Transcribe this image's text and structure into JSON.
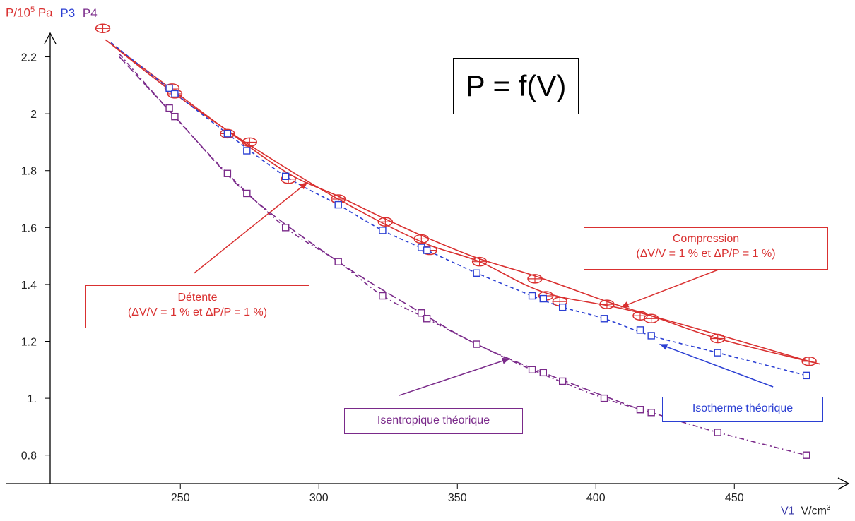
{
  "header": {
    "p_label": "P/10",
    "p_exp": "5",
    "p_unit": " Pa",
    "p3": "P3",
    "p4": "P4"
  },
  "x_axis": {
    "var": "V1",
    "unit": "V/cm",
    "unit_exp": "3"
  },
  "formula": "P = f(V)",
  "annotations": {
    "compression_title": "Compression",
    "compression_detail": "(ΔV/V = 1 % et ΔP/P = 1 %)",
    "detente_title": "Détente",
    "detente_detail": "(ΔV/V = 1 % et ΔP/P = 1 %)",
    "isotherme": "Isotherme théorique",
    "isentropique": "Isentropique théorique"
  },
  "colors": {
    "red": "#d93030",
    "blue": "#2b3fd3",
    "purple": "#7a2a8a",
    "axis": "#000000"
  },
  "chart_data": {
    "type": "scatter",
    "xlim": [
      203,
      491
    ],
    "ylim": [
      0.7,
      2.38
    ],
    "xticks": [
      250,
      300,
      350,
      400,
      450
    ],
    "yticks": [
      0.8,
      1.0,
      1.2,
      1.4,
      1.6,
      1.8,
      2.0,
      2.2
    ],
    "ytick_labels": [
      "0.8",
      "1.",
      "1.2",
      "1.4",
      "1.6",
      "1.8",
      "2",
      "2.2"
    ],
    "series": [
      {
        "name": "P",
        "color": "#d93030",
        "marker": "crossed-ellipse",
        "x": [
          222,
          247,
          248,
          267,
          275,
          289,
          307,
          324,
          337,
          340,
          358,
          378,
          382,
          387,
          404,
          416,
          420,
          444,
          477
        ],
        "y": [
          2.3,
          2.09,
          2.07,
          1.93,
          1.9,
          1.77,
          1.7,
          1.62,
          1.56,
          1.52,
          1.48,
          1.42,
          1.36,
          1.34,
          1.33,
          1.29,
          1.28,
          1.21,
          1.13
        ]
      },
      {
        "name": "P3",
        "color": "#2b3fd3",
        "marker": "square",
        "x": [
          246,
          248,
          267,
          274,
          288,
          307,
          323,
          337,
          339,
          357,
          377,
          381,
          388,
          403,
          416,
          420,
          444,
          476
        ],
        "y": [
          2.09,
          2.07,
          1.93,
          1.87,
          1.78,
          1.68,
          1.59,
          1.53,
          1.52,
          1.44,
          1.36,
          1.35,
          1.32,
          1.28,
          1.24,
          1.22,
          1.16,
          1.08
        ]
      },
      {
        "name": "P4",
        "color": "#7a2a8a",
        "marker": "square",
        "x": [
          246,
          248,
          267,
          274,
          288,
          307,
          323,
          337,
          339,
          357,
          377,
          381,
          388,
          403,
          416,
          420,
          444,
          476
        ],
        "y": [
          2.02,
          1.99,
          1.79,
          1.72,
          1.6,
          1.48,
          1.36,
          1.3,
          1.28,
          1.19,
          1.1,
          1.09,
          1.06,
          1.0,
          0.96,
          0.95,
          0.88,
          0.8
        ]
      }
    ],
    "curves": [
      {
        "color": "#d93030",
        "style": "solid",
        "x": [
          223,
          247,
          267,
          289,
          307,
          324,
          340,
          358,
          378,
          404,
          420,
          444,
          481
        ],
        "y": [
          2.26,
          2.085,
          1.94,
          1.79,
          1.71,
          1.63,
          1.56,
          1.49,
          1.43,
          1.34,
          1.29,
          1.21,
          1.12
        ]
      },
      {
        "color": "#d93030",
        "style": "solid",
        "x": [
          223,
          248,
          275,
          307,
          337,
          358,
          382,
          416,
          477
        ],
        "y": [
          2.26,
          2.07,
          1.89,
          1.7,
          1.55,
          1.48,
          1.37,
          1.3,
          1.13
        ]
      },
      {
        "color": "#2b3fd3",
        "style": "dashed",
        "x": [
          225,
          247,
          267,
          288,
          307,
          323,
          339,
          357,
          377,
          388,
          403,
          420,
          444,
          476
        ],
        "y": [
          2.25,
          2.08,
          1.93,
          1.78,
          1.68,
          1.59,
          1.52,
          1.44,
          1.36,
          1.32,
          1.28,
          1.22,
          1.16,
          1.08
        ]
      },
      {
        "color": "#7a2a8a",
        "style": "dashdot",
        "x": [
          228,
          247,
          267,
          288,
          307,
          323,
          339,
          357,
          377,
          403,
          420,
          444,
          476
        ],
        "y": [
          2.21,
          2.0,
          1.79,
          1.6,
          1.48,
          1.36,
          1.28,
          1.19,
          1.1,
          1.0,
          0.95,
          0.88,
          0.8
        ]
      },
      {
        "color": "#7a2a8a",
        "style": "longdash",
        "x": [
          228,
          248,
          274,
          307,
          337,
          357,
          381,
          416
        ],
        "y": [
          2.2,
          1.99,
          1.72,
          1.48,
          1.3,
          1.19,
          1.09,
          0.96
        ]
      }
    ],
    "arrows": [
      {
        "color": "#d93030",
        "from": [
          255,
          1.44
        ],
        "to": [
          296,
          1.76
        ]
      },
      {
        "color": "#d93030",
        "from": [
          457,
          1.5
        ],
        "to": [
          409,
          1.32
        ]
      },
      {
        "color": "#7a2a8a",
        "from": [
          329,
          1.01
        ],
        "to": [
          369,
          1.14
        ]
      },
      {
        "color": "#2b3fd3",
        "from": [
          464,
          1.04
        ],
        "to": [
          423,
          1.19
        ]
      }
    ]
  }
}
